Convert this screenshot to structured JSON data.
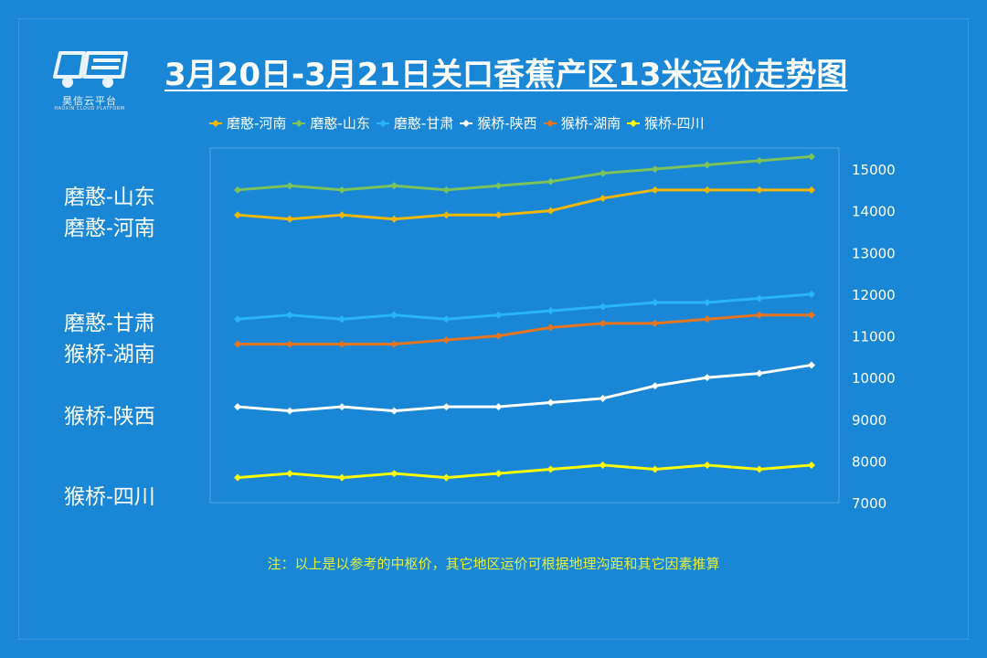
{
  "header": {
    "title": "3月20日-3月21日关口香蕉产区13米运价走势图"
  },
  "logo": {
    "icon": "truck-logo-icon",
    "name": "昊信云平台",
    "sub": "HAOXIN CLOUD PLATFORM"
  },
  "note": "注：以上是以参考的中枢价，其它地区运价可根据地理沟距和其它因素推算",
  "left_labels": [
    {
      "text": "磨憨-山东"
    },
    {
      "text": "磨憨-河南"
    },
    {
      "text": "磨憨-甘肃"
    },
    {
      "text": "猴桥-湖南"
    },
    {
      "text": "猴桥-陕西"
    },
    {
      "text": "猴桥-四川"
    }
  ],
  "chart_data": {
    "type": "line",
    "title": "3月20日-3月21日关口香蕉产区13米运价走势图",
    "xlabel": "",
    "ylabel": "",
    "ylim": [
      7000,
      15000
    ],
    "yticks": [
      7000,
      8000,
      9000,
      10000,
      11000,
      12000,
      13000,
      14000,
      15000
    ],
    "y_axis_position": "right",
    "grid": false,
    "legend_position": "top",
    "x": [
      1,
      2,
      3,
      4,
      5,
      6,
      7,
      8,
      9,
      10,
      11,
      12
    ],
    "series": [
      {
        "name": "磨憨-河南",
        "color": "#f2b705",
        "values": [
          13900,
          13800,
          13900,
          13800,
          13900,
          13900,
          14000,
          14300,
          14500,
          14500,
          14500,
          14500
        ]
      },
      {
        "name": "磨憨-山东",
        "color": "#7cc35a",
        "values": [
          14500,
          14600,
          14500,
          14600,
          14500,
          14600,
          14700,
          14900,
          15000,
          15100,
          15200,
          15300
        ]
      },
      {
        "name": "磨憨-甘肃",
        "color": "#29b6f6",
        "values": [
          11400,
          11500,
          11400,
          11500,
          11400,
          11500,
          11600,
          11700,
          11800,
          11800,
          11900,
          12000
        ]
      },
      {
        "name": "猴桥-陕西",
        "color": "#ffffff",
        "values": [
          9300,
          9200,
          9300,
          9200,
          9300,
          9300,
          9400,
          9500,
          9800,
          10000,
          10100,
          10300
        ]
      },
      {
        "name": "猴桥-湖南",
        "color": "#e8751e",
        "values": [
          10800,
          10800,
          10800,
          10800,
          10900,
          11000,
          11200,
          11300,
          11300,
          11400,
          11500,
          11500
        ]
      },
      {
        "name": "猴桥-四川",
        "color": "#ffff00",
        "values": [
          7600,
          7700,
          7600,
          7700,
          7600,
          7700,
          7800,
          7900,
          7800,
          7900,
          7800,
          7900
        ]
      }
    ]
  }
}
